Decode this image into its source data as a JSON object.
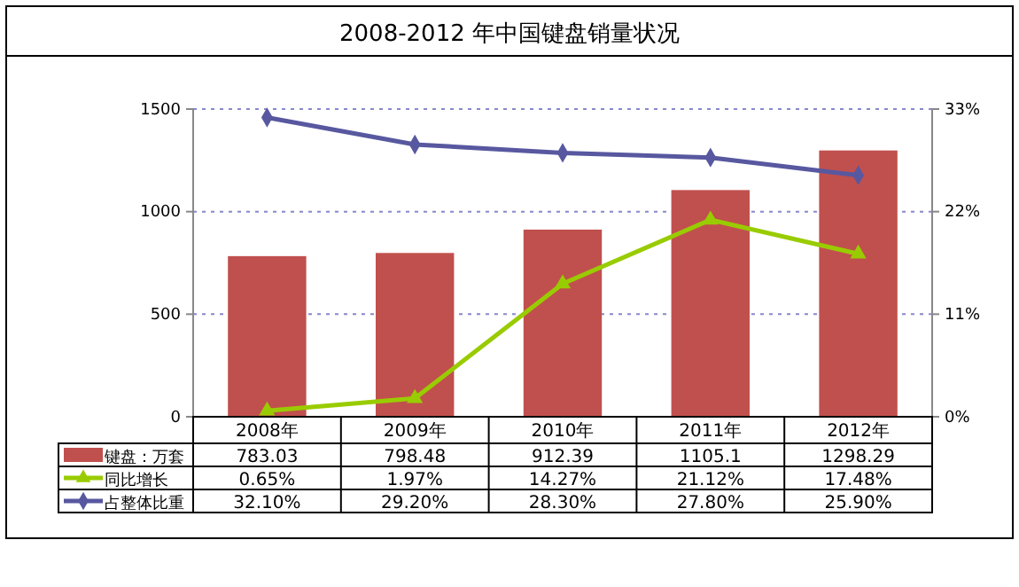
{
  "chart_data": {
    "type": "bar",
    "title": "2008-2012 年中国键盘销量状况",
    "categories": [
      "2008年",
      "2009年",
      "2010年",
      "2011年",
      "2012年"
    ],
    "series": [
      {
        "name": "键盘：万套",
        "color": "#c0504d",
        "values": [
          783.03,
          798.48,
          912.39,
          1105.1,
          1298.29
        ],
        "value_labels": [
          "783.03",
          "798.48",
          "912.39",
          "1105.1",
          "1298.29"
        ]
      },
      {
        "name": "同比增长",
        "type": "line",
        "axis": "y2",
        "color": "#99cc00",
        "marker": "triangle",
        "values": [
          0.65,
          1.97,
          14.27,
          21.12,
          17.48
        ],
        "value_labels": [
          "0.65%",
          "1.97%",
          "14.27%",
          "21.12%",
          "17.48%"
        ]
      },
      {
        "name": "占整体比重",
        "type": "line",
        "axis": "y2",
        "color": "#5858a0",
        "marker": "diamond",
        "values": [
          32.1,
          29.2,
          28.3,
          27.8,
          25.9
        ],
        "value_labels": [
          "32.10%",
          "29.20%",
          "28.30%",
          "27.80%",
          "25.90%"
        ]
      }
    ],
    "ylim": [
      0,
      1500
    ],
    "yticks": [
      0,
      500,
      1000,
      1500
    ],
    "y2lim": [
      0,
      33
    ],
    "y2ticks": [
      {
        "value": 0,
        "label": "0%"
      },
      {
        "value": 11,
        "label": "11%"
      },
      {
        "value": 22,
        "label": "22%"
      },
      {
        "value": 33,
        "label": "33%"
      }
    ],
    "grid": "y",
    "legend": "bottom",
    "line_style": "solid"
  }
}
